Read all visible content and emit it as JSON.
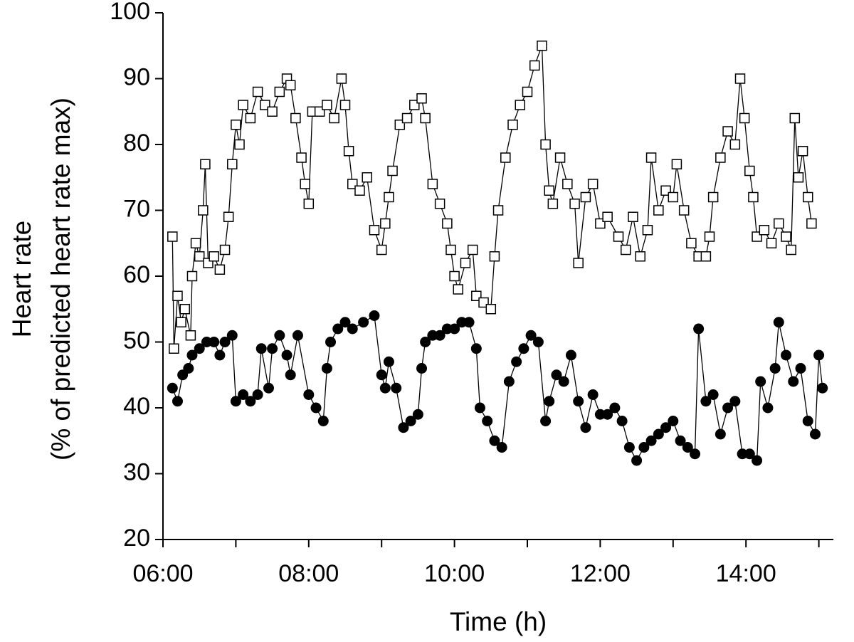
{
  "chart_data": {
    "type": "scatter-line",
    "ylabel": [
      "Heart rate",
      "(% of predicted heart rate max)"
    ],
    "xlabel": "Time (h)",
    "ylim": [
      20,
      100
    ],
    "yticks": [
      20,
      30,
      40,
      50,
      60,
      70,
      80,
      90,
      100
    ],
    "xlim": [
      6,
      15.2
    ],
    "xticks": [
      {
        "value": 6,
        "label": "06:00"
      },
      {
        "value": 8,
        "label": "08:00"
      },
      {
        "value": 10,
        "label": "10:00"
      },
      {
        "value": 12,
        "label": "12:00"
      },
      {
        "value": 14,
        "label": "14:00"
      }
    ],
    "xminorticks": [
      7,
      9,
      11,
      13,
      15
    ],
    "series": [
      {
        "color": "#000000",
        "marker": "square-open",
        "x": [
          6.13,
          6.15,
          6.2,
          6.25,
          6.3,
          6.38,
          6.4,
          6.45,
          6.5,
          6.55,
          6.58,
          6.62,
          6.7,
          6.78,
          6.85,
          6.9,
          6.95,
          7.0,
          7.05,
          7.1,
          7.2,
          7.3,
          7.4,
          7.5,
          7.6,
          7.7,
          7.75,
          7.82,
          7.9,
          7.95,
          8.0,
          8.05,
          8.15,
          8.25,
          8.35,
          8.45,
          8.5,
          8.55,
          8.6,
          8.7,
          8.8,
          8.9,
          9.0,
          9.05,
          9.1,
          9.15,
          9.25,
          9.35,
          9.45,
          9.55,
          9.6,
          9.7,
          9.8,
          9.9,
          9.95,
          10.0,
          10.05,
          10.15,
          10.25,
          10.3,
          10.4,
          10.5,
          10.55,
          10.6,
          10.7,
          10.8,
          10.9,
          11.0,
          11.1,
          11.2,
          11.25,
          11.3,
          11.35,
          11.45,
          11.55,
          11.65,
          11.7,
          11.8,
          11.9,
          12.0,
          12.1,
          12.25,
          12.35,
          12.45,
          12.55,
          12.65,
          12.7,
          12.8,
          12.9,
          13.0,
          13.05,
          13.15,
          13.25,
          13.35,
          13.45,
          13.5,
          13.55,
          13.65,
          13.75,
          13.85,
          13.92,
          13.98,
          14.05,
          14.1,
          14.15,
          14.25,
          14.35,
          14.45,
          14.55,
          14.62,
          14.67,
          14.72,
          14.78,
          14.85,
          14.9
        ],
        "values": [
          66,
          49,
          57,
          53,
          55,
          51,
          60,
          65,
          63,
          70,
          77,
          62,
          63,
          61,
          64,
          69,
          77,
          83,
          80,
          86,
          84,
          88,
          86,
          85,
          88,
          90,
          89,
          84,
          78,
          74,
          71,
          85,
          85,
          86,
          84,
          90,
          86,
          79,
          74,
          73,
          75,
          67,
          64,
          68,
          72,
          76,
          83,
          84,
          86,
          87,
          84,
          74,
          71,
          68,
          64,
          60,
          58,
          62,
          64,
          57,
          56,
          55,
          63,
          70,
          78,
          83,
          86,
          88,
          92,
          95,
          80,
          73,
          71,
          78,
          74,
          71,
          62,
          72,
          74,
          68,
          69,
          66,
          64,
          69,
          63,
          67,
          78,
          70,
          73,
          72,
          77,
          70,
          65,
          63,
          63,
          66,
          72,
          78,
          82,
          80,
          90,
          84,
          76,
          72,
          66,
          67,
          65,
          68,
          66,
          64,
          84,
          75,
          79,
          72,
          68
        ]
      },
      {
        "color": "#000000",
        "marker": "circle-filled",
        "x": [
          6.13,
          6.2,
          6.27,
          6.35,
          6.4,
          6.5,
          6.6,
          6.7,
          6.78,
          6.85,
          6.95,
          7.0,
          7.1,
          7.2,
          7.3,
          7.35,
          7.45,
          7.5,
          7.6,
          7.7,
          7.75,
          7.85,
          8.0,
          8.1,
          8.2,
          8.25,
          8.3,
          8.4,
          8.5,
          8.6,
          8.75,
          8.9,
          9.0,
          9.05,
          9.1,
          9.2,
          9.3,
          9.4,
          9.5,
          9.55,
          9.6,
          9.7,
          9.8,
          9.9,
          10.0,
          10.1,
          10.2,
          10.3,
          10.35,
          10.45,
          10.55,
          10.65,
          10.75,
          10.85,
          10.95,
          11.05,
          11.15,
          11.25,
          11.3,
          11.4,
          11.5,
          11.6,
          11.7,
          11.8,
          11.9,
          12.0,
          12.1,
          12.2,
          12.3,
          12.4,
          12.5,
          12.6,
          12.7,
          12.8,
          12.9,
          13.0,
          13.1,
          13.2,
          13.3,
          13.35,
          13.45,
          13.55,
          13.65,
          13.75,
          13.85,
          13.95,
          14.05,
          14.15,
          14.2,
          14.3,
          14.4,
          14.45,
          14.55,
          14.65,
          14.75,
          14.85,
          14.95,
          15.0,
          15.05
        ],
        "values": [
          43,
          41,
          45,
          46,
          48,
          49,
          50,
          50,
          48,
          50,
          51,
          41,
          42,
          41,
          42,
          49,
          43,
          49,
          51,
          48,
          45,
          51,
          42,
          40,
          38,
          46,
          50,
          52,
          53,
          52,
          53,
          54,
          45,
          43,
          47,
          43,
          37,
          38,
          39,
          46,
          50,
          51,
          51,
          52,
          52,
          53,
          53,
          49,
          40,
          38,
          35,
          34,
          44,
          47,
          49,
          51,
          50,
          38,
          41,
          45,
          44,
          48,
          41,
          37,
          42,
          39,
          39,
          40,
          38,
          34,
          32,
          34,
          35,
          36,
          37,
          38,
          35,
          34,
          33,
          52,
          41,
          42,
          36,
          40,
          41,
          33,
          33,
          32,
          44,
          40,
          46,
          53,
          48,
          44,
          46,
          38,
          36,
          48,
          43
        ]
      }
    ]
  }
}
